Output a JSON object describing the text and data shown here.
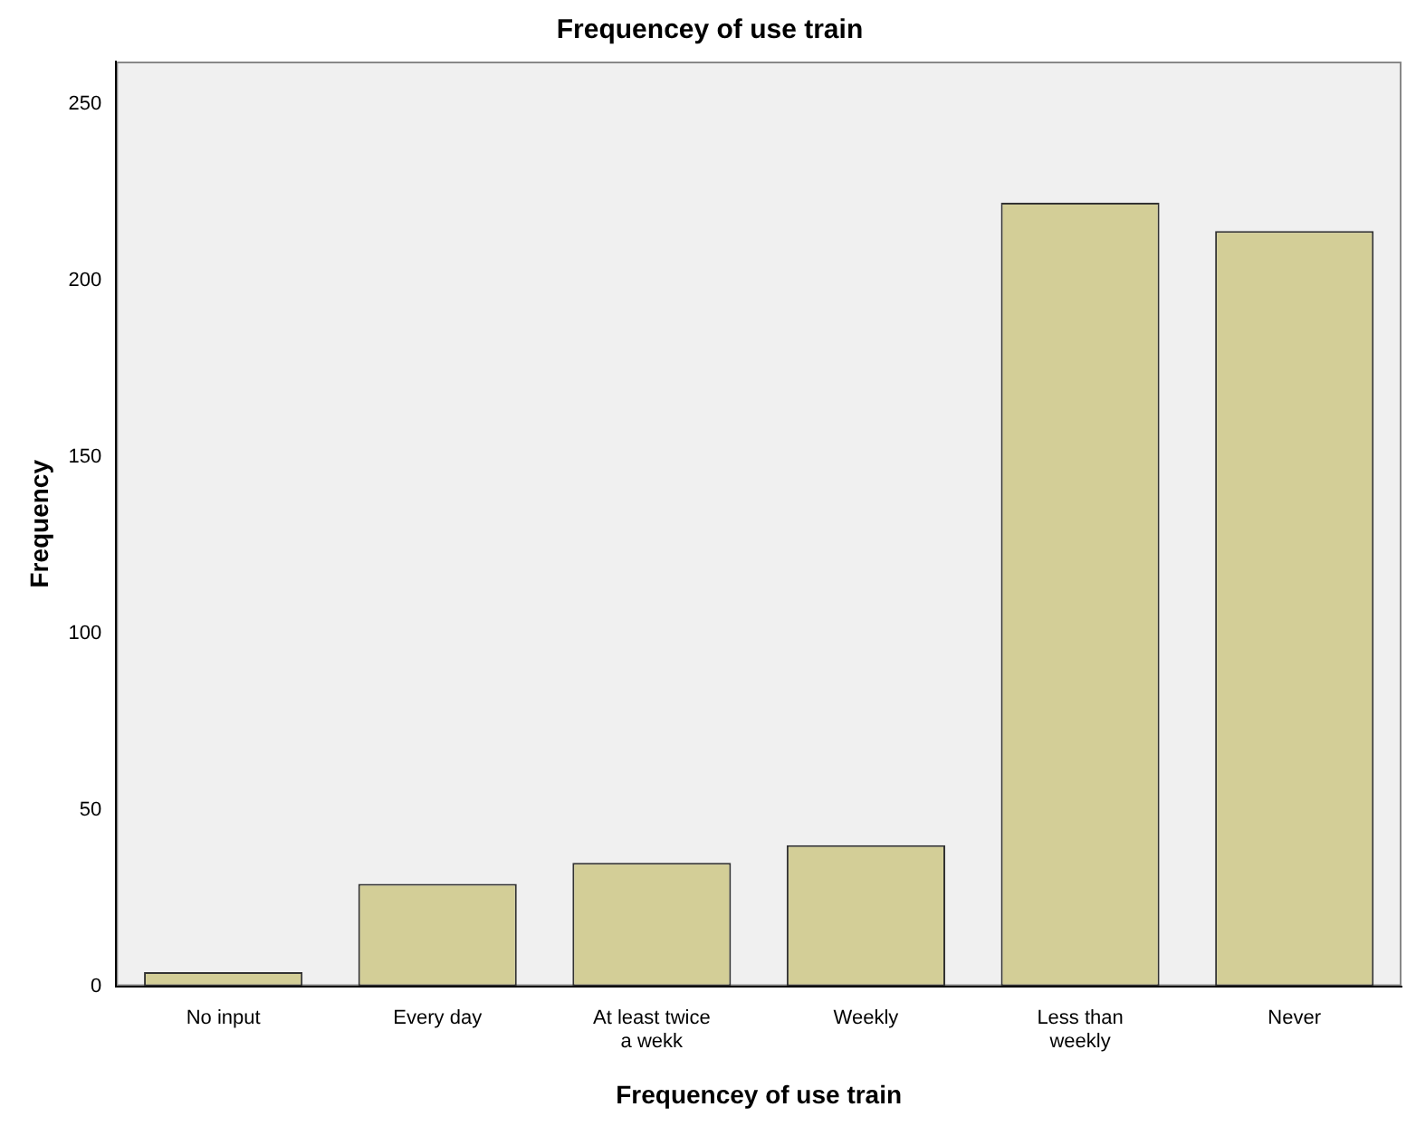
{
  "chart_data": {
    "type": "bar",
    "title": "Frequencey of use train",
    "xlabel": "Frequencey of use train",
    "ylabel": "Frequency",
    "categories": [
      "No input",
      "Every day",
      "At least twice a wekk",
      "Weekly",
      "Less than weekly",
      "Never"
    ],
    "values": [
      4,
      29,
      35,
      40,
      222,
      214
    ],
    "color": "#d3ce97",
    "ylim": [
      0,
      262
    ],
    "yticks": [
      0,
      50,
      100,
      150,
      200,
      250
    ],
    "grid": false,
    "legend": false
  }
}
